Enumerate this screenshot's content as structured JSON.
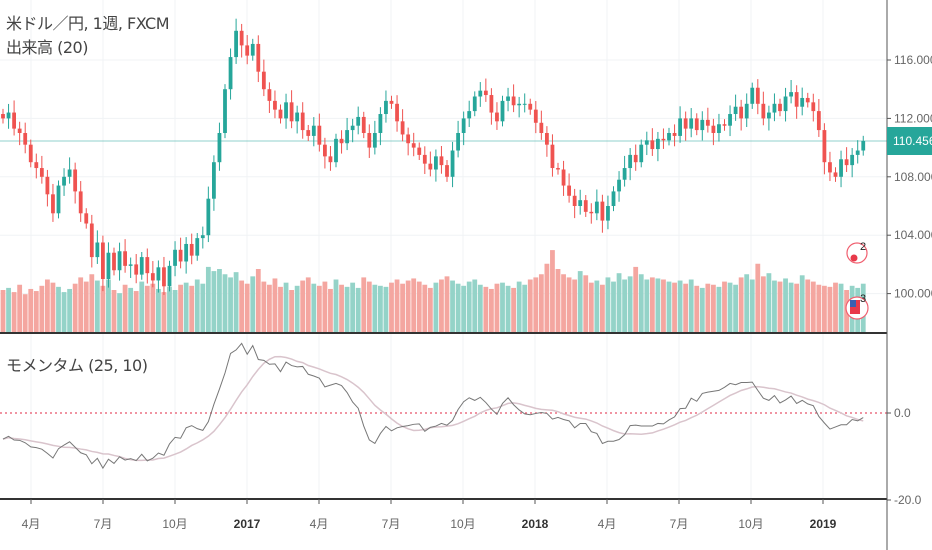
{
  "legend": {
    "symbol": "米ドル／円, 1週, FXCM",
    "volume": "出来高 (20)",
    "momentum": "モメンタム (25, 10)"
  },
  "price_axis": {
    "ticks": [
      "116.000",
      "112.000",
      "108.000",
      "104.000",
      "100.000"
    ],
    "tick_values": [
      116,
      112,
      108,
      104,
      100
    ],
    "current_price_label": "110.456",
    "current_price": 110.456
  },
  "momentum_axis": {
    "ticks": [
      "0.0",
      "-20.0"
    ],
    "tick_values": [
      0,
      -20
    ]
  },
  "time_axis": {
    "labels": [
      "4月",
      "7月",
      "10月",
      "2017",
      "4月",
      "7月",
      "10月",
      "2018",
      "4月",
      "7月",
      "10月",
      "2019"
    ],
    "year_flags": [
      false,
      false,
      false,
      true,
      false,
      false,
      false,
      true,
      false,
      false,
      false,
      true
    ]
  },
  "events": [
    {
      "label": "2"
    },
    {
      "label": "3"
    }
  ],
  "colors": {
    "up": "#26a69a",
    "down": "#ef5350",
    "vol_up": "#94d3c8",
    "vol_down": "#f4a6a0",
    "price_line": "#26a69a",
    "momentum": "#777777",
    "momentum_ma": "#d9c4cc",
    "zero_line": "#e8536a"
  },
  "chart_data": {
    "type": "candlestick",
    "title": "米ドル／円, 1週, FXCM",
    "interval": "weekly",
    "ylim": [
      97.5,
      120
    ],
    "closes": [
      112.0,
      112.4,
      111.3,
      111.0,
      110.2,
      109.0,
      108.6,
      108.0,
      106.8,
      105.5,
      107.4,
      108.0,
      108.5,
      107.0,
      105.5,
      104.8,
      102.5,
      103.5,
      101.0,
      102.8,
      101.6,
      102.9,
      101.9,
      102.0,
      101.3,
      102.5,
      101.4,
      100.9,
      101.8,
      100.5,
      101.9,
      103.0,
      102.2,
      103.4,
      102.6,
      103.8,
      104.0,
      106.5,
      109.0,
      111.0,
      114.0,
      116.2,
      118.0,
      117.0,
      116.3,
      117.1,
      115.2,
      114.0,
      113.2,
      112.6,
      112.0,
      113.1,
      111.8,
      112.4,
      111.2,
      110.8,
      111.5,
      110.2,
      109.4,
      109.0,
      110.6,
      110.3,
      111.2,
      111.5,
      112.1,
      111.0,
      110.0,
      111.0,
      112.3,
      113.2,
      113.0,
      111.8,
      110.9,
      110.3,
      110.0,
      109.5,
      108.9,
      108.5,
      109.4,
      108.8,
      108.0,
      109.8,
      111.0,
      112.0,
      112.5,
      113.5,
      113.9,
      113.6,
      112.4,
      111.8,
      113.2,
      113.5,
      112.9,
      113.0,
      113.0,
      112.6,
      111.7,
      111.0,
      110.2,
      108.6,
      108.5,
      107.4,
      106.7,
      106.0,
      106.4,
      105.6,
      105.5,
      106.3,
      105.0,
      106.0,
      107.0,
      107.8,
      108.6,
      109.5,
      109.0,
      110.2,
      110.5,
      109.9,
      110.6,
      110.5,
      111.0,
      110.8,
      112.0,
      111.3,
      112.0,
      111.2,
      111.9,
      111.5,
      111.0,
      111.6,
      111.5,
      112.3,
      112.8,
      112.0,
      113.0,
      114.1,
      113.0,
      112.0,
      112.4,
      113.0,
      112.5,
      113.5,
      113.8,
      112.8,
      113.4,
      113.1,
      112.5,
      111.2,
      109.0,
      108.3,
      108.0,
      109.2,
      108.8,
      109.5,
      109.8,
      110.456
    ],
    "volume_relative": [
      40,
      42,
      38,
      45,
      36,
      41,
      39,
      44,
      50,
      47,
      43,
      38,
      41,
      46,
      52,
      48,
      55,
      49,
      44,
      50,
      40,
      37,
      45,
      42,
      39,
      48,
      44,
      46,
      41,
      38,
      43,
      40,
      45,
      47,
      44,
      50,
      46,
      62,
      58,
      60,
      55,
      52,
      57,
      49,
      46,
      53,
      60,
      48,
      45,
      51,
      43,
      47,
      40,
      44,
      49,
      52,
      46,
      44,
      48,
      41,
      50,
      45,
      43,
      47,
      42,
      52,
      48,
      45,
      44,
      43,
      47,
      50,
      46,
      49,
      51,
      48,
      45,
      42,
      47,
      50,
      53,
      49,
      46,
      44,
      48,
      50,
      45,
      43,
      41,
      46,
      47,
      44,
      42,
      48,
      45,
      50,
      52,
      55,
      65,
      78,
      60,
      55,
      52,
      50,
      58,
      54,
      47,
      49,
      45,
      52,
      48,
      56,
      50,
      53,
      62,
      55,
      50,
      52,
      51,
      50,
      48,
      47,
      49,
      46,
      50,
      44,
      42,
      46,
      45,
      43,
      48,
      47,
      45,
      52,
      55,
      50,
      65,
      53,
      56,
      49,
      48,
      51,
      47,
      46,
      54,
      50,
      48,
      45,
      44,
      43,
      47,
      46,
      40,
      44,
      42,
      46
    ],
    "momentum_length": 25,
    "momentum_ma_length": 10
  }
}
